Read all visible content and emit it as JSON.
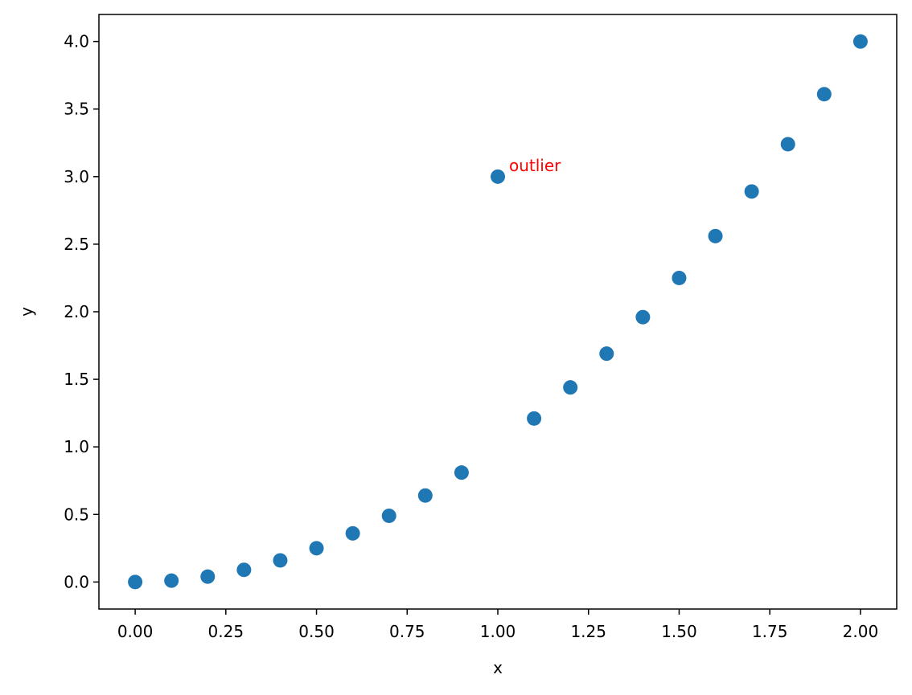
{
  "chart_data": {
    "type": "scatter",
    "x_label": "x",
    "y_label": "y",
    "x": [
      0.0,
      0.1,
      0.2,
      0.3,
      0.4,
      0.5,
      0.6,
      0.7,
      0.8,
      0.9,
      1.0,
      1.1,
      1.2,
      1.3,
      1.4,
      1.5,
      1.6,
      1.7,
      1.8,
      1.9,
      2.0
    ],
    "values": [
      0.0,
      0.01,
      0.04,
      0.09,
      0.16,
      0.25,
      0.36,
      0.49,
      0.64,
      0.81,
      3.0,
      1.21,
      1.44,
      1.69,
      1.96,
      2.25,
      2.56,
      2.89,
      3.24,
      3.61,
      4.0
    ],
    "color": "#1f77b4",
    "xlim": [
      -0.1,
      2.1
    ],
    "xticks": [
      {
        "value": 0,
        "label": "0.00"
      },
      {
        "value": 0.25,
        "label": "0.25"
      },
      {
        "value": 0.5,
        "label": "0.50"
      },
      {
        "value": 0.75,
        "label": "0.75"
      },
      {
        "value": 1,
        "label": "1.00"
      },
      {
        "value": 1.25,
        "label": "1.25"
      },
      {
        "value": 1.5,
        "label": "1.50"
      },
      {
        "value": 1.75,
        "label": "1.75"
      },
      {
        "value": 2,
        "label": "2.00"
      }
    ],
    "ylim": [
      -0.2,
      4.2
    ],
    "yticks": [
      {
        "value": 0,
        "label": "0.0"
      },
      0.5,
      {
        "value": 1,
        "label": "1.0"
      },
      1.5,
      {
        "value": 2,
        "label": "2.0"
      },
      2.5,
      {
        "value": 3,
        "label": "3.0"
      },
      3.5,
      {
        "value": 4,
        "label": "4.0"
      }
    ],
    "annotation": {
      "text": "outlier",
      "x": 1.0,
      "y": 3.0,
      "color": "red"
    }
  }
}
